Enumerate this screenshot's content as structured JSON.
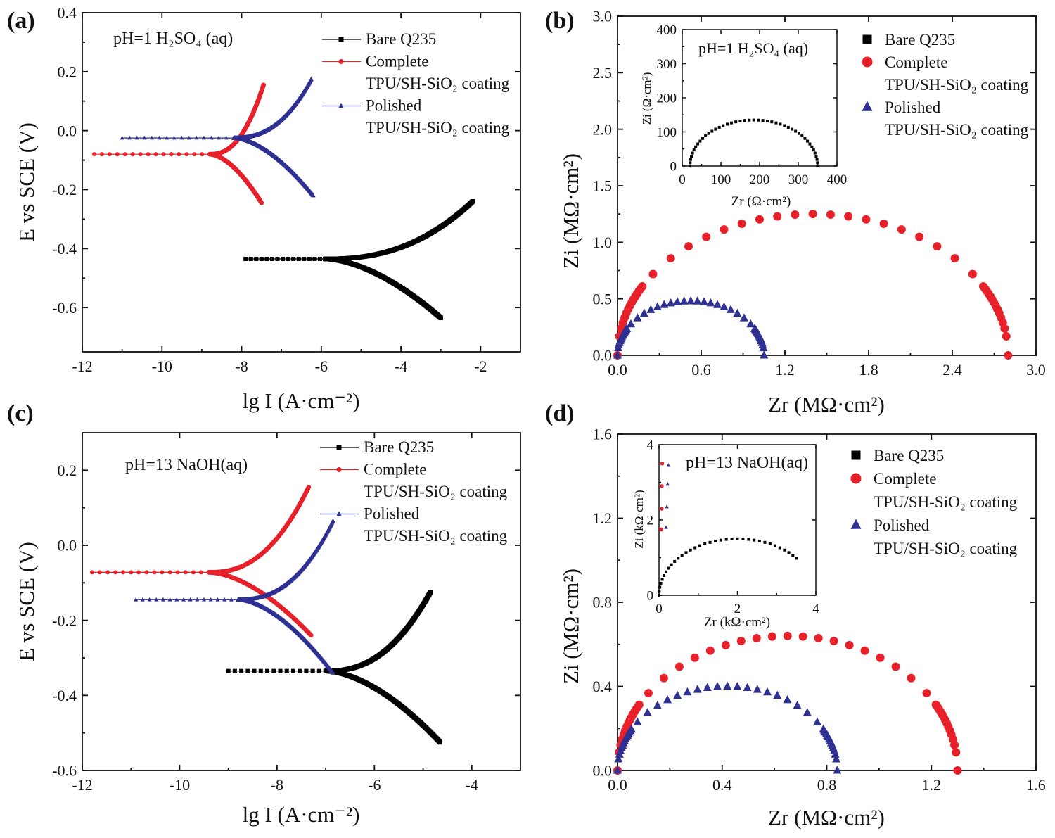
{
  "chart_data": [
    {
      "panel": "(a)",
      "type": "line",
      "title": "",
      "annotation": "pH=1 H₂SO₄ (aq)",
      "xlabel": "lg I (A·cm⁻²)",
      "ylabel": "E vs SCE (V)",
      "xlim": [
        -12,
        -1
      ],
      "ylim": [
        -0.75,
        0.4
      ],
      "xticks": [
        -12,
        -10,
        -8,
        -6,
        -4,
        -2
      ],
      "yticks": [
        -0.6,
        -0.4,
        -0.2,
        0.0,
        0.2,
        0.4
      ],
      "xticklabels": [
        "-12",
        "-10",
        "-8",
        "-6",
        "-4",
        "-2"
      ],
      "yticklabels": [
        "-0.6",
        "-0.4",
        "-0.2",
        "0.0",
        "0.2",
        "0.4"
      ],
      "legend": [
        "Bare Q235",
        "Complete",
        "TPU/SH-SiO₂ coating",
        "Polished",
        "TPU/SH-SiO₂ coating"
      ],
      "series": [
        {
          "name": "Bare Q235",
          "marker": "square",
          "color": "#000000",
          "tafel": {
            "ecorr": -0.435,
            "icorr": -5.3,
            "ba": 0.38,
            "bc": 0.28,
            "ihigh": -2.2,
            "ehigh": -0.24,
            "ilow_c": -3.0,
            "elow": -0.635,
            "istart": -7.9
          }
        },
        {
          "name": "Complete TPU/SH-SiO₂ coating",
          "marker": "circle",
          "color": "#e8202a",
          "tafel": {
            "ecorr": -0.08,
            "icorr": -8.2,
            "ba": 0.22,
            "bc": 0.16,
            "ihigh": -7.45,
            "ehigh": 0.155,
            "ilow_c": -7.5,
            "elow": -0.245,
            "istart": -11.7
          }
        },
        {
          "name": "Polished TPU/SH-SiO₂ coating",
          "marker": "triangle",
          "color": "#2e3192",
          "tafel": {
            "ecorr": -0.025,
            "icorr": -7.6,
            "ba": 0.3,
            "bc": 0.22,
            "ihigh": -6.25,
            "ehigh": 0.175,
            "ilow_c": -6.2,
            "elow": -0.22,
            "istart": -11.0
          }
        }
      ]
    },
    {
      "panel": "(b)",
      "type": "scatter",
      "annotation": "pH=1 H₂SO₄ (aq)",
      "xlabel": "Zr (MΩ·cm²)",
      "ylabel": "Zi (MΩ·cm²)",
      "xlim": [
        0,
        3.0
      ],
      "ylim": [
        0,
        3.0
      ],
      "xticks": [
        0.0,
        0.6,
        1.2,
        1.8,
        2.4,
        3.0
      ],
      "yticks": [
        0.0,
        0.5,
        1.0,
        1.5,
        2.0,
        2.5,
        3.0
      ],
      "xticklabels": [
        "0.0",
        "0.6",
        "1.2",
        "1.8",
        "2.4",
        "3.0"
      ],
      "yticklabels": [
        "0.0",
        "0.5",
        "1.0",
        "1.5",
        "2.0",
        "2.5",
        "3.0"
      ],
      "legend": [
        "Bare Q235",
        "Complete",
        "TPU/SH-SiO₂ coating",
        "Polished",
        "TPU/SH-SiO₂ coating"
      ],
      "series": [
        {
          "name": "Complete TPU/SH-SiO₂ coating",
          "marker": "circle",
          "color": "#e8202a",
          "arc": {
            "r0": 0.0,
            "r1": 2.8,
            "height": 1.25
          }
        },
        {
          "name": "Polished TPU/SH-SiO₂ coating",
          "marker": "triangle",
          "color": "#2e3192",
          "arc": {
            "r0": 0.0,
            "r1": 1.05,
            "height": 0.48
          }
        }
      ],
      "inset": {
        "annotation": "pH=1 H₂SO₄ (aq)",
        "xlabel": "Zr (Ω·cm²)",
        "ylabel": "Zi (Ω·cm²)",
        "xlim": [
          0,
          400
        ],
        "ylim": [
          0,
          400
        ],
        "xticks": [
          0,
          100,
          200,
          300,
          400
        ],
        "yticks": [
          0,
          100,
          200,
          300,
          400
        ],
        "xticklabels": [
          "0",
          "100",
          "200",
          "300",
          "400"
        ],
        "yticklabels": [
          "0",
          "100",
          "200",
          "300",
          "400"
        ],
        "series": [
          {
            "name": "Bare Q235",
            "marker": "square",
            "color": "#000000",
            "arc": {
              "r0": 20,
              "r1": 350,
              "height": 135
            }
          }
        ]
      }
    },
    {
      "panel": "(c)",
      "type": "line",
      "annotation": "pH=13 NaOH(aq)",
      "xlabel": "lg I (A·cm⁻²)",
      "ylabel": "E vs SCE (V)",
      "xlim": [
        -12,
        -3
      ],
      "ylim": [
        -0.6,
        0.3
      ],
      "xticks": [
        -12,
        -10,
        -8,
        -6,
        -4
      ],
      "yticks": [
        -0.6,
        -0.4,
        -0.2,
        0.0,
        0.2
      ],
      "xticklabels": [
        "-12",
        "-10",
        "-8",
        "-6",
        "-4"
      ],
      "yticklabels": [
        "-0.6",
        "-0.4",
        "-0.2",
        "0.0",
        "0.2"
      ],
      "legend": [
        "Bare Q235",
        "Complete",
        "TPU/SH-SiO₂ coating",
        "Polished",
        "TPU/SH-SiO₂ coating"
      ],
      "series": [
        {
          "name": "Bare Q235",
          "marker": "square",
          "color": "#000000",
          "tafel": {
            "ecorr": -0.335,
            "icorr": -6.4,
            "ba": 0.11,
            "bc": 0.12,
            "ihigh": -4.85,
            "ehigh": -0.125,
            "ilow_c": -4.65,
            "elow": -0.525,
            "istart": -9.0
          }
        },
        {
          "name": "Complete TPU/SH-SiO₂ coating",
          "marker": "circle",
          "color": "#e8202a",
          "tafel": {
            "ecorr": -0.072,
            "icorr": -8.8,
            "ba": 0.12,
            "bc": 0.12,
            "ihigh": -7.35,
            "ehigh": 0.155,
            "ilow_c": -7.3,
            "elow": -0.24,
            "istart": -11.8
          }
        },
        {
          "name": "Polished TPU/SH-SiO₂ coating",
          "marker": "triangle",
          "color": "#2e3192",
          "tafel": {
            "ecorr": -0.145,
            "icorr": -8.2,
            "ba": 0.12,
            "bc": 0.12,
            "ihigh": -6.85,
            "ehigh": 0.065,
            "ilow_c": -6.85,
            "elow": -0.34,
            "istart": -10.9
          }
        }
      ]
    },
    {
      "panel": "(d)",
      "type": "scatter",
      "annotation": "pH=13 NaOH(aq)",
      "xlabel": "Zr (MΩ·cm²)",
      "ylabel": "Zi (MΩ·cm²)",
      "xlim": [
        0,
        1.6
      ],
      "ylim": [
        0,
        1.6
      ],
      "xticks": [
        0.0,
        0.4,
        0.8,
        1.2,
        1.6
      ],
      "yticks": [
        0.0,
        0.4,
        0.8,
        1.2,
        1.6
      ],
      "xticklabels": [
        "0.0",
        "0.4",
        "0.8",
        "1.2",
        "1.6"
      ],
      "yticklabels": [
        "0.0",
        "0.4",
        "0.8",
        "1.2",
        "1.6"
      ],
      "legend": [
        "Bare Q235",
        "Complete",
        "TPU/SH-SiO₂ coating",
        "Polished",
        "TPU/SH-SiO₂ coating"
      ],
      "series": [
        {
          "name": "Complete TPU/SH-SiO₂ coating",
          "marker": "circle",
          "color": "#e8202a",
          "arc": {
            "r0": 0.0,
            "r1": 1.3,
            "height": 0.64
          }
        },
        {
          "name": "Polished TPU/SH-SiO₂ coating",
          "marker": "triangle",
          "color": "#2e3192",
          "arc": {
            "r0": 0.0,
            "r1": 0.84,
            "height": 0.4
          }
        }
      ],
      "inset": {
        "annotation": "",
        "xlabel": "Zr (kΩ·cm²)",
        "ylabel": "Zi (kΩ·cm²)",
        "xlim": [
          0,
          4
        ],
        "ylim": [
          0,
          4
        ],
        "xticks": [
          0,
          2,
          4
        ],
        "yticks": [
          0,
          2,
          4
        ],
        "xticklabels": [
          "0",
          "2",
          "4"
        ],
        "yticklabels": [
          "0",
          "2",
          "4"
        ],
        "series": [
          {
            "name": "Bare Q235",
            "marker": "square",
            "color": "#000000",
            "arc": {
              "r0": 0.0,
              "r1": 4.0,
              "height": 1.5,
              "stop": 3.55
            }
          },
          {
            "name": "Complete TPU/SH-SiO₂ coating",
            "marker": "circle",
            "color": "#e8202a",
            "points": [
              [
                0.06,
                1.75
              ],
              [
                0.07,
                2.3
              ],
              [
                0.07,
                2.9
              ],
              [
                0.08,
                3.5
              ]
            ]
          },
          {
            "name": "Polished TPU/SH-SiO₂ coating",
            "marker": "triangle",
            "color": "#2e3192",
            "points": [
              [
                0.18,
                1.8
              ],
              [
                0.2,
                2.35
              ],
              [
                0.22,
                2.95
              ],
              [
                0.24,
                3.45
              ]
            ]
          }
        ]
      }
    }
  ]
}
